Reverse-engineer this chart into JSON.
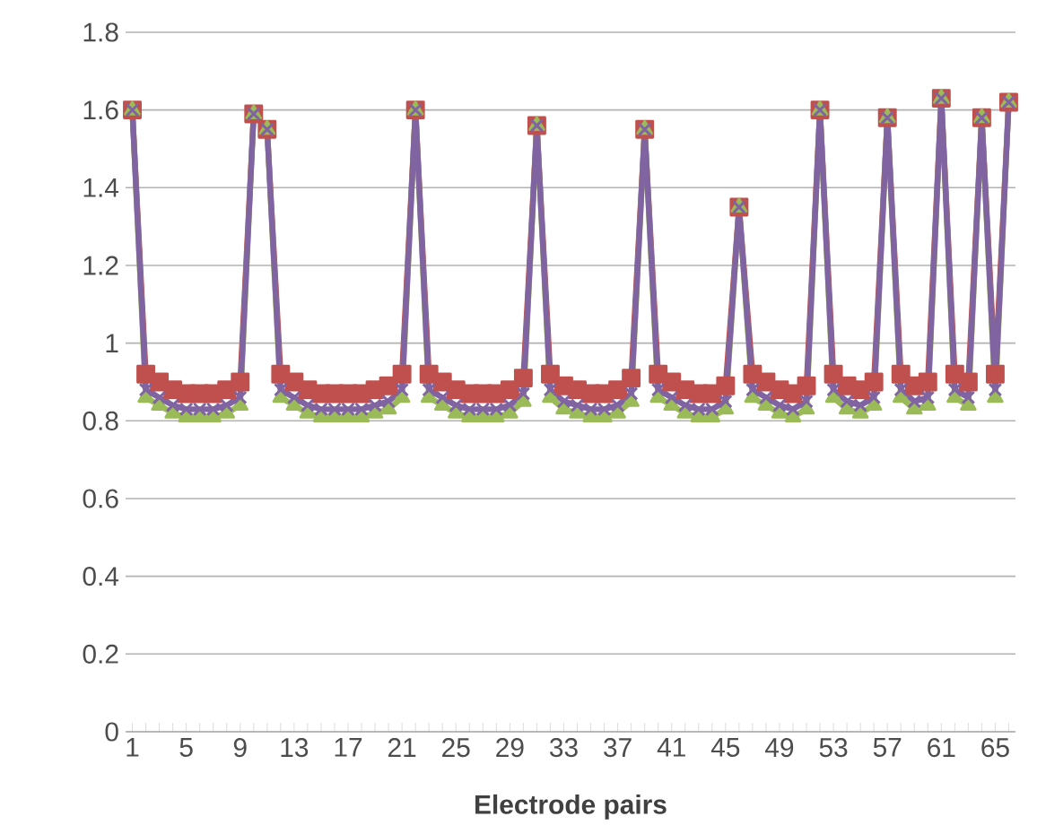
{
  "chart_data": {
    "type": "line",
    "xlabel": "Electrode pairs",
    "categories": [
      "1",
      null,
      null,
      null,
      "5",
      null,
      null,
      null,
      "9",
      null,
      null,
      null,
      "13",
      null,
      null,
      null,
      "17",
      null,
      null,
      null,
      "21",
      null,
      null,
      null,
      "25",
      null,
      null,
      null,
      "29",
      null,
      null,
      null,
      "33",
      null,
      null,
      null,
      "37",
      null,
      null,
      null,
      "41",
      null,
      null,
      null,
      "45",
      null,
      null,
      null,
      "49",
      null,
      null,
      null,
      "53",
      null,
      null,
      null,
      "57",
      null,
      null,
      null,
      "61",
      null,
      null,
      null,
      "65",
      null
    ],
    "ylim": [
      0,
      1.8
    ],
    "yticks": [
      0,
      0.2,
      0.4,
      0.6,
      0.8,
      1,
      1.2,
      1.4,
      1.6,
      1.8
    ],
    "grid": "y",
    "series": [
      {
        "color": "#c0504d",
        "marker": "square",
        "values": [
          1.6,
          0.92,
          0.9,
          0.88,
          0.87,
          0.87,
          0.87,
          0.88,
          0.9,
          1.59,
          1.55,
          0.92,
          0.9,
          0.88,
          0.87,
          0.87,
          0.87,
          0.87,
          0.88,
          0.89,
          0.92,
          1.6,
          0.92,
          0.9,
          0.88,
          0.87,
          0.87,
          0.87,
          0.88,
          0.91,
          1.56,
          0.92,
          0.89,
          0.88,
          0.87,
          0.87,
          0.88,
          0.91,
          1.55,
          0.92,
          0.9,
          0.88,
          0.87,
          0.87,
          0.89,
          1.35,
          0.92,
          0.9,
          0.88,
          0.87,
          0.89,
          1.6,
          0.92,
          0.89,
          0.88,
          0.9,
          1.58,
          0.92,
          0.89,
          0.9,
          1.63,
          0.92,
          0.9,
          1.58,
          0.92,
          1.62
        ]
      },
      {
        "color": "#9bbb59",
        "marker": "triangle",
        "values": [
          1.6,
          0.86,
          0.84,
          0.82,
          0.81,
          0.81,
          0.81,
          0.82,
          0.84,
          1.59,
          1.55,
          0.86,
          0.84,
          0.82,
          0.81,
          0.81,
          0.81,
          0.81,
          0.82,
          0.83,
          0.86,
          1.6,
          0.86,
          0.84,
          0.82,
          0.81,
          0.81,
          0.81,
          0.82,
          0.85,
          1.56,
          0.86,
          0.83,
          0.82,
          0.81,
          0.81,
          0.82,
          0.85,
          1.55,
          0.86,
          0.84,
          0.82,
          0.81,
          0.81,
          0.83,
          1.35,
          0.86,
          0.84,
          0.82,
          0.81,
          0.83,
          1.6,
          0.86,
          0.83,
          0.82,
          0.84,
          1.58,
          0.86,
          0.83,
          0.84,
          1.63,
          0.86,
          0.84,
          1.58,
          0.86,
          1.62
        ]
      },
      {
        "color": "#8064a2",
        "marker": "cross",
        "values": [
          1.6,
          0.88,
          0.86,
          0.84,
          0.83,
          0.83,
          0.83,
          0.84,
          0.86,
          1.59,
          1.55,
          0.88,
          0.86,
          0.84,
          0.83,
          0.83,
          0.83,
          0.83,
          0.84,
          0.85,
          0.88,
          1.6,
          0.88,
          0.86,
          0.84,
          0.83,
          0.83,
          0.83,
          0.84,
          0.87,
          1.56,
          0.88,
          0.85,
          0.84,
          0.83,
          0.83,
          0.84,
          0.87,
          1.55,
          0.88,
          0.86,
          0.84,
          0.83,
          0.83,
          0.85,
          1.35,
          0.88,
          0.86,
          0.84,
          0.83,
          0.85,
          1.6,
          0.88,
          0.85,
          0.84,
          0.86,
          1.58,
          0.88,
          0.85,
          0.86,
          1.63,
          0.88,
          0.86,
          1.58,
          0.88,
          1.62
        ]
      }
    ]
  }
}
